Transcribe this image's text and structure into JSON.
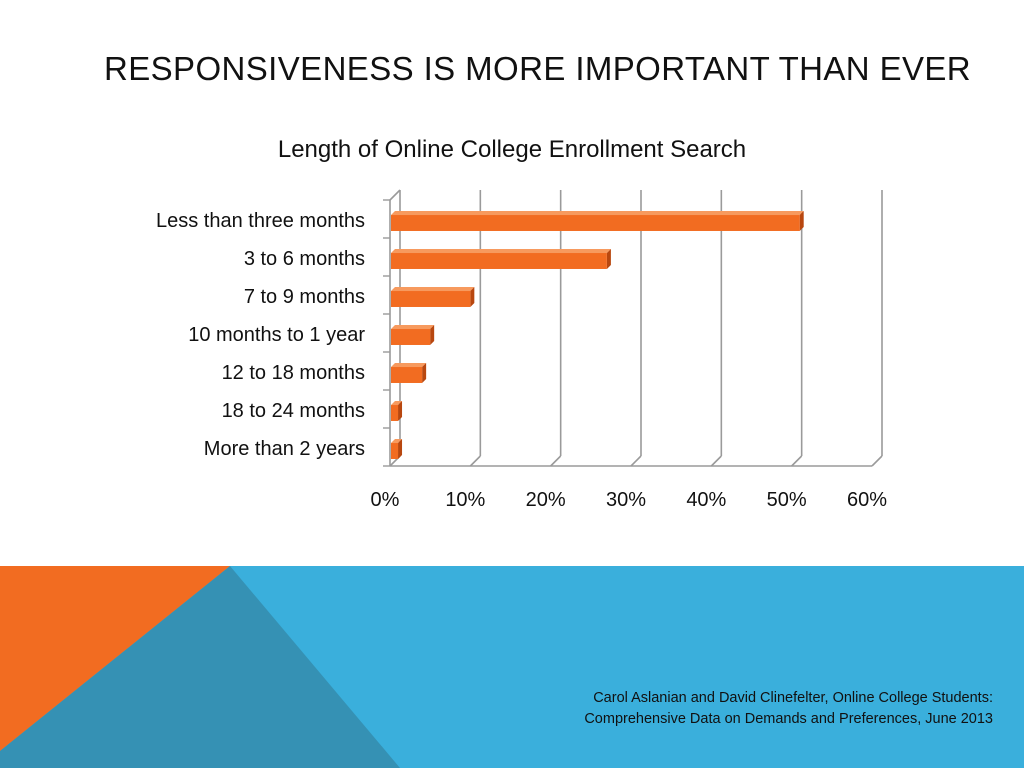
{
  "slide": {
    "title": "RESPONSIVENESS IS MORE IMPORTANT THAN EVER",
    "citation_line1": "Carol Aslanian and David Clinefelter, Online College Students:",
    "citation_line2": "Comprehensive Data on Demands and Preferences, June 2013"
  },
  "colors": {
    "bar": "#F26C21",
    "bar_dark": "#B8470F",
    "bar_top": "#F79A5E",
    "grid": "#9A9A9A",
    "footer_blue": "#3AAFDC",
    "footer_orange": "#F26C21",
    "footer_teal": "#3591B4"
  },
  "chart_data": {
    "type": "bar",
    "orientation": "horizontal",
    "title": "Length of Online College Enrollment Search",
    "categories": [
      "Less than three months",
      "3 to 6 months",
      "7 to 9 months",
      "10 months to 1 year",
      "12 to 18 months",
      "18 to 24 months",
      "More than 2 years"
    ],
    "values": [
      51,
      27,
      10,
      5,
      4,
      1,
      1
    ],
    "value_format": "percent",
    "xlim": [
      0,
      60
    ],
    "x_ticks": [
      "0%",
      "10%",
      "20%",
      "30%",
      "40%",
      "50%",
      "60%"
    ],
    "grid": true,
    "legend": "none"
  }
}
